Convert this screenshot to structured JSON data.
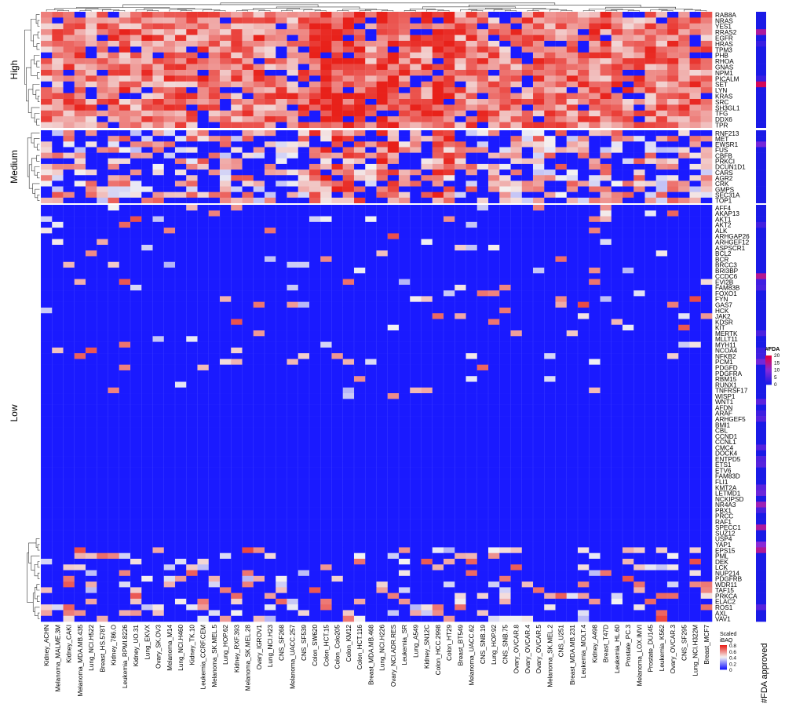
{
  "chart_data": {
    "type": "heatmap",
    "title": "",
    "groups": [
      {
        "label": "High",
        "genes": [
          "RAB8A",
          "NRAS",
          "YES1",
          "RRAS2",
          "EGFR",
          "HRAS",
          "TPM3",
          "PHB",
          "RHOA",
          "GNAS",
          "NPM1",
          "PICALM",
          "SET",
          "LYN",
          "KRAS",
          "SRC",
          "SH3GL1",
          "TFG",
          "DDX6",
          "TPR"
        ]
      },
      {
        "label": "Medium",
        "genes": [
          "RNF213",
          "MET",
          "EWSR1",
          "FUS",
          "CBFB",
          "PRKCI",
          "DCUN1D1",
          "CARS",
          "AGR2",
          "CRK",
          "GMPS",
          "SEC31A",
          "TOP1"
        ]
      },
      {
        "label": "Low",
        "genes": [
          "AFF4",
          "AKAP13",
          "AKT1",
          "AKT2",
          "ALK",
          "ARHGAP26",
          "ARHGEF12",
          "ASPSCR1",
          "BCL2",
          "BCR",
          "BRCC3",
          "BRI3BP",
          "CCDC6",
          "EVI2B",
          "FAM83B",
          "FOXO1",
          "FYN",
          "GAS7",
          "HCK",
          "JAK2",
          "KDSR",
          "KIT",
          "MERTK",
          "MLLT11",
          "MYH11",
          "NCOA4",
          "NFKB2",
          "PCM1",
          "PDGFD",
          "PDGFRA",
          "RBM15",
          "RUNX1",
          "TNFRSF17",
          "WISP1",
          "WNT1",
          "AFDN",
          "ARAF",
          "ARHGEF5",
          "BMI1",
          "CBL",
          "CCND1",
          "CCNL1",
          "CMC4",
          "DOCK4",
          "ENTPD5",
          "ETS1",
          "ETV6",
          "FAM83D",
          "FLI1",
          "KMT2A",
          "LETMD1",
          "NCKIPSD",
          "NR4A3",
          "PBX1",
          "PRCC",
          "RAF1",
          "SPECC1",
          "SUZ12",
          "USP4",
          "YAP1",
          "EPS15",
          "PML",
          "DEK",
          "LCK",
          "NUP214",
          "PDGFRB",
          "WDR11",
          "TAF15",
          "PRKCA",
          "ELAC2",
          "ROS1",
          "AXL",
          "VAV1"
        ]
      }
    ],
    "columns": [
      "Kidney_ACHN",
      "Melanoma_MALME.3M",
      "Kidney_CAKI",
      "Melanoma_MDA.MB.435",
      "Lung_NCI.H522",
      "Breast_HS.578T",
      "Kidney_786.O",
      "Leukemia_RPMI.8226",
      "Kidney_UO.31",
      "Lung_EKVX",
      "Ovary_SK.OV3",
      "Melanoma_M14",
      "Lung_NCI.H460",
      "Kidney_TK.10",
      "Leukemia_CCRF.CEM",
      "Melanoma_SK.MEL.5",
      "Lung_HOP.62",
      "Kidney_RXF.393",
      "Melanoma_SK.MEL.28",
      "Ovary_IGROV1",
      "Lung_NCI.H23",
      "CNS_SF268",
      "Melanoma_UACC.257",
      "CNS_SF539",
      "Colon_SW620",
      "Colon_HCT.15",
      "Colon_Colo205",
      "Colon_KM12",
      "Colon_HCT.116",
      "Breast_MDA.MB.468",
      "Lung_NCI.H226",
      "Ovary_NCI.ADR.RES",
      "Leukemia_SR",
      "Lung_A549",
      "Kidney_SN12C",
      "Colon_HCC.2998",
      "Colon_HT29",
      "Breast_BT549",
      "Melanoma_UACC.62",
      "CNS_SNB.19",
      "Lung_HOP.92",
      "CNS_SNB.75",
      "Ovary_OVCAR.8",
      "Ovary_OVCAR.4",
      "Ovary_OVCAR.5",
      "Melanoma_SK.MEL.2",
      "CNS_U251",
      "Breast_MDA.MB.231",
      "Leukemia_MOLT.4",
      "Kidney_A498",
      "Breast_T47D",
      "Leukemia_HL.60",
      "Prostate_PC.3",
      "Melanoma_LOX.IMVI",
      "Prostate_DU145",
      "Leukemia_K562",
      "Ovary_OVCAR.3",
      "CNS_SF295",
      "Lung_NCI.H322M",
      "Breast_MCF7"
    ],
    "color_scale": {
      "label": "Scaled iBAQ",
      "ticks": [
        "0.8",
        "0.6",
        "0.4",
        "0.2",
        "0"
      ],
      "range": [
        0,
        0.8
      ],
      "low": "#1a1aff",
      "mid": "#f4f4f4",
      "high": "#e8211a"
    },
    "annotation": {
      "label": "#FDA approved",
      "legend_title": "#FDA",
      "ticks": [
        "20",
        "15",
        "10",
        "5",
        "0"
      ],
      "range": [
        0,
        20
      ],
      "low": "#1a1ae6",
      "high": "#e6003c"
    },
    "dendrograms": {
      "rows": true,
      "columns": true
    }
  }
}
